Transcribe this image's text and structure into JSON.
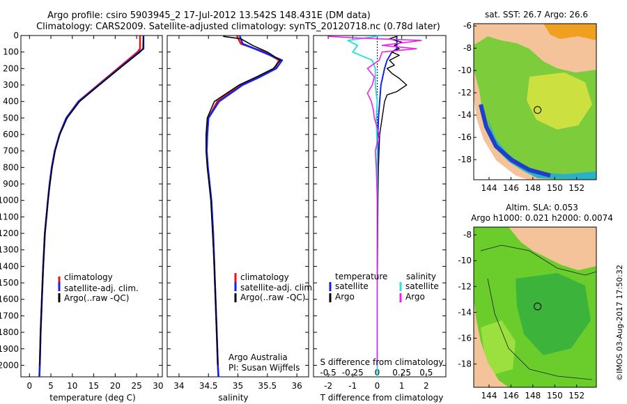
{
  "header": {
    "line1": "Argo profile: csiro 5903945_2 17-Jul-2012 13.542S 148.431E (DM data)",
    "line2": "Climatology: CARS2009. Satellite-adjusted climatology: synTS_20120718.nc (0.78d later)"
  },
  "footer": {
    "credit_line1": "Argo Australia",
    "credit_line2": "PI: Susan Wijffels",
    "stamp": "©IMOS 03-Aug-2017 17:50:32"
  },
  "colors": {
    "climatology": "#ee1111",
    "satellite": "#1122ee",
    "argo": "#000000",
    "sal_satellite": "#33dddd",
    "sal_argo": "#ee22ee",
    "land": "#f5c39a"
  },
  "chart_data": [
    {
      "type": "line",
      "id": "temperature",
      "xlabel": "temperature (deg C)",
      "ylabel": "",
      "xlim": [
        -2,
        31
      ],
      "ylim": [
        2070,
        0
      ],
      "xticks": [
        "0",
        "5",
        "10",
        "15",
        "20",
        "25",
        "30"
      ],
      "xtick_values": [
        0,
        5,
        10,
        15,
        20,
        25,
        30
      ],
      "yticks": [
        "0",
        "100",
        "200",
        "300",
        "400",
        "500",
        "600",
        "700",
        "800",
        "900",
        "1000",
        "1100",
        "1200",
        "1300",
        "1400",
        "1500",
        "1600",
        "1700",
        "1800",
        "1900",
        "2000"
      ],
      "ytick_values": [
        0,
        100,
        200,
        300,
        400,
        500,
        600,
        700,
        800,
        900,
        1000,
        1100,
        1200,
        1300,
        1400,
        1500,
        1600,
        1700,
        1800,
        1900,
        2000
      ],
      "legend": [
        "climatology",
        "satellite-adj. clim.",
        "Argo(..raw -QC)"
      ],
      "legend_position": "lower-center",
      "series": [
        {
          "name": "climatology",
          "depth": [
            0,
            80,
            100,
            200,
            300,
            400,
            500,
            600,
            700,
            800,
            900,
            1000,
            1200,
            1400,
            1600,
            1800,
            2000,
            2070
          ],
          "values": [
            25.8,
            25.8,
            25.2,
            20.6,
            16.0,
            11.4,
            8.6,
            7.0,
            5.9,
            5.2,
            4.7,
            4.3,
            3.6,
            3.2,
            2.9,
            2.6,
            2.4,
            2.3
          ]
        },
        {
          "name": "satellite-adj. clim.",
          "depth": [
            0,
            80,
            100,
            200,
            300,
            400,
            500,
            600,
            700,
            800,
            900,
            1000,
            1200,
            1400,
            1600,
            1800,
            2000,
            2070
          ],
          "values": [
            26.6,
            26.6,
            25.6,
            20.9,
            16.2,
            11.5,
            8.6,
            7.0,
            5.9,
            5.2,
            4.7,
            4.3,
            3.6,
            3.2,
            2.9,
            2.6,
            2.4,
            2.3
          ]
        },
        {
          "name": "Argo(..raw -QC)",
          "depth": [
            5,
            80,
            100,
            200,
            300,
            400,
            500,
            600,
            700,
            800,
            900,
            1000,
            1200,
            1400,
            1600,
            1800,
            2000
          ],
          "values": [
            26.6,
            26.5,
            25.8,
            21.0,
            16.3,
            11.7,
            8.8,
            7.1,
            6.0,
            5.3,
            4.8,
            4.3,
            3.6,
            3.2,
            2.9,
            2.6,
            2.4
          ]
        }
      ]
    },
    {
      "type": "line",
      "id": "salinity",
      "xlabel": "salinity",
      "ylabel": "",
      "xlim": [
        33.8,
        36.2
      ],
      "ylim": [
        2070,
        0
      ],
      "xticks": [
        "34",
        "34.5",
        "35",
        "35.5",
        "36"
      ],
      "xtick_values": [
        34,
        34.5,
        35,
        35.5,
        36
      ],
      "legend": [
        "climatology",
        "satellite-adj. clim.",
        "Argo(..raw -QC)"
      ],
      "legend_position": "lower-right",
      "series": [
        {
          "name": "climatology",
          "depth": [
            0,
            50,
            100,
            150,
            200,
            250,
            300,
            400,
            500,
            600,
            700,
            800,
            900,
            1000,
            1200,
            1400,
            1600,
            1800,
            2000,
            2070
          ],
          "values": [
            34.98,
            35.05,
            35.45,
            35.7,
            35.62,
            35.35,
            35.05,
            34.65,
            34.5,
            34.48,
            34.47,
            34.49,
            34.52,
            34.55,
            34.58,
            34.6,
            34.62,
            34.64,
            34.66,
            34.67
          ]
        },
        {
          "name": "satellite-adj. clim.",
          "depth": [
            0,
            50,
            100,
            150,
            200,
            250,
            300,
            400,
            500,
            600,
            700,
            800,
            900,
            1000,
            1200,
            1400,
            1600,
            1800,
            2000,
            2070
          ],
          "values": [
            35.03,
            35.08,
            35.42,
            35.75,
            35.65,
            35.38,
            35.08,
            34.68,
            34.5,
            34.48,
            34.47,
            34.49,
            34.52,
            34.55,
            34.58,
            34.6,
            34.62,
            34.64,
            34.66,
            34.67
          ]
        },
        {
          "name": "Argo(..raw -QC)",
          "depth": [
            5,
            20,
            60,
            100,
            150,
            200,
            250,
            300,
            400,
            500,
            600,
            700,
            800,
            900,
            1000,
            1200,
            1400,
            1600,
            1800,
            2000
          ],
          "values": [
            34.75,
            35.05,
            35.25,
            35.5,
            35.72,
            35.6,
            35.32,
            35.02,
            34.6,
            34.48,
            34.46,
            34.46,
            34.48,
            34.51,
            34.54,
            34.57,
            34.6,
            34.62,
            34.64,
            34.66
          ]
        }
      ]
    },
    {
      "type": "line",
      "id": "difference",
      "xlabel": "T difference from climatology",
      "xlabel_top": "S difference from climatology",
      "xlim": [
        -2.6,
        2.8
      ],
      "ylim": [
        2070,
        0
      ],
      "xticks": [
        "-2",
        "-1",
        "0",
        "1",
        "2"
      ],
      "xtick_values": [
        -2,
        -1,
        0,
        1,
        2
      ],
      "sticks": [
        "-0.5",
        "-0.25",
        "0",
        "0.25",
        "0.5"
      ],
      "stick_values": [
        -0.5,
        -0.25,
        0,
        0.25,
        0.5
      ],
      "legend_titles": [
        "temperature",
        "salinity"
      ],
      "legend": [
        "satellite",
        "Argo",
        "satellite",
        "Argo"
      ],
      "legend_position": "lower-center",
      "series": [
        {
          "name": "T satellite",
          "units": "T",
          "depth": [
            0,
            80,
            100,
            150,
            200,
            300,
            400,
            500,
            600,
            800,
            1000,
            1500,
            2000,
            2070
          ],
          "values": [
            0.8,
            0.8,
            0.6,
            0.4,
            0.3,
            0.15,
            0.1,
            0.05,
            0.03,
            0.02,
            0.01,
            0,
            0,
            0
          ]
        },
        {
          "name": "T Argo",
          "units": "T",
          "depth": [
            5,
            20,
            40,
            60,
            80,
            100,
            120,
            150,
            180,
            200,
            230,
            260,
            300,
            340,
            360,
            400,
            450,
            500,
            600,
            800,
            1000,
            1200,
            1500,
            1800,
            2000
          ],
          "values": [
            0.8,
            0.5,
            1.0,
            0.7,
            0.9,
            0.6,
            0.9,
            0.5,
            0.7,
            0.4,
            0.6,
            0.9,
            1.2,
            0.8,
            0.4,
            0.3,
            0.25,
            0.2,
            0.1,
            0.05,
            0.03,
            0.02,
            0.01,
            0,
            0
          ]
        },
        {
          "name": "S satellite",
          "units": "S",
          "depth": [
            0,
            30,
            60,
            100,
            150,
            200,
            300,
            400,
            500,
            700,
            900,
            1200,
            1500,
            2000,
            2070
          ],
          "values": [
            0.05,
            -0.3,
            -0.2,
            -0.25,
            -0.05,
            -0.02,
            -0.02,
            0,
            -0.01,
            0,
            0,
            0,
            0,
            0,
            0
          ]
        },
        {
          "name": "S Argo",
          "units": "S",
          "depth": [
            5,
            15,
            30,
            60,
            80,
            100,
            150,
            200,
            250,
            300,
            350,
            400,
            450,
            500,
            600,
            700,
            800,
            1000,
            1200,
            1500,
            2000
          ],
          "values": [
            -0.5,
            -0.2,
            0.45,
            0.05,
            0.4,
            0.05,
            0.02,
            -0.1,
            -0.03,
            -0.05,
            -0.1,
            -0.06,
            -0.04,
            -0.03,
            0.02,
            -0.02,
            -0.01,
            0,
            0,
            0,
            0
          ]
        }
      ]
    },
    {
      "type": "heatmap",
      "id": "sst-map",
      "title": "sat. SST: 26.7 Argo: 26.6",
      "xticks": [
        "144",
        "146",
        "148",
        "150",
        "152"
      ],
      "xtick_values": [
        144,
        146,
        148,
        150,
        152
      ],
      "yticks": [
        "-6",
        "-8",
        "-10",
        "-12",
        "-14",
        "-16",
        "-18"
      ],
      "ytick_values": [
        -6,
        -8,
        -10,
        -12,
        -14,
        -16,
        -18
      ],
      "xlim": [
        142.6,
        153.8
      ],
      "ylim": [
        -19.8,
        -5.8
      ],
      "argo_position": {
        "lon": 148.431,
        "lat": -13.542
      }
    },
    {
      "type": "heatmap",
      "id": "sla-map",
      "title_line1": "Altim. SLA: 0.053",
      "title_line2": "Argo h1000: 0.021 h2000: 0.0074",
      "xticks": [
        "144",
        "146",
        "148",
        "150",
        "152"
      ],
      "xtick_values": [
        144,
        146,
        148,
        150,
        152
      ],
      "yticks": [
        "-8",
        "-10",
        "-12",
        "-14",
        "-16",
        "-18"
      ],
      "ytick_values": [
        -8,
        -10,
        -12,
        -14,
        -16,
        -18
      ],
      "xlim": [
        142.6,
        153.8
      ],
      "ylim": [
        -19.8,
        -7.4
      ],
      "argo_position": {
        "lon": 148.431,
        "lat": -13.542
      }
    }
  ]
}
